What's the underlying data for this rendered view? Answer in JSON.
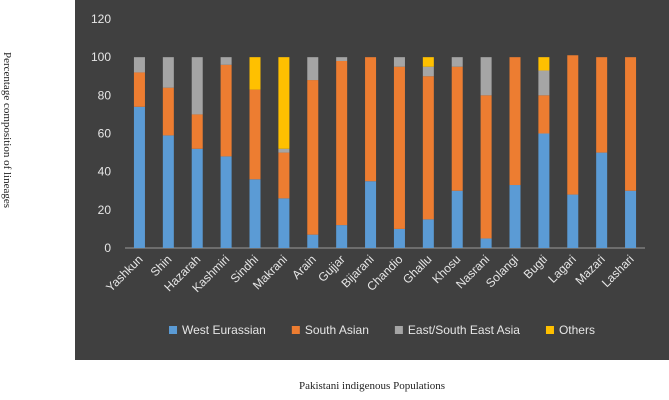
{
  "chart_data": {
    "type": "bar",
    "stacked": true,
    "title": "",
    "xlabel": "Pakistani indigenous Populations",
    "ylabel": "Percentage composition of lineages",
    "ylim": [
      0,
      120
    ],
    "yticks": [
      0,
      20,
      40,
      60,
      80,
      100,
      120
    ],
    "grid": false,
    "legend_position": "bottom",
    "background": "#404040",
    "categories": [
      "Yashkun",
      "Shin",
      "Hazarah",
      "Kashmiri",
      "Sindhi",
      "Makrani",
      "Arain",
      "Gujjar",
      "Bijarani",
      "Chandio",
      "Ghallu",
      "Khosu",
      "Nasrani",
      "Solangi",
      "Bugti",
      "Lagari",
      "Mazari",
      "Lashari"
    ],
    "series": [
      {
        "name": "West Eurassian",
        "color": "#5B9BD5",
        "values": [
          74,
          59,
          52,
          48,
          36,
          26,
          7,
          12,
          35,
          10,
          15,
          30,
          5,
          33,
          60,
          28,
          50,
          30
        ]
      },
      {
        "name": "South Asian",
        "color": "#ED7D31",
        "values": [
          18,
          25,
          18,
          48,
          47,
          24,
          81,
          86,
          65,
          85,
          75,
          65,
          75,
          67,
          20,
          73,
          50,
          70
        ]
      },
      {
        "name": "East/South East Asia",
        "color": "#A5A5A5",
        "values": [
          8,
          16,
          30,
          4,
          0,
          2,
          12,
          2,
          0,
          5,
          5,
          5,
          20,
          0,
          13,
          0,
          0,
          0
        ]
      },
      {
        "name": "Others",
        "color": "#FFC000",
        "values": [
          0,
          0,
          0,
          0,
          17,
          48,
          0,
          0,
          0,
          0,
          5,
          0,
          0,
          0,
          7,
          0,
          0,
          0
        ]
      }
    ]
  }
}
